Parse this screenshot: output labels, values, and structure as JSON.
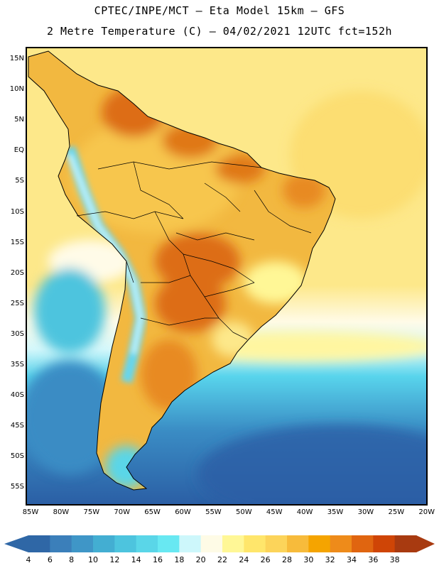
{
  "header": {
    "line1": "CPTEC/INPE/MCT –  Eta Model 15km – GFS",
    "line2": "2 Metre Temperature (C) – 04/02/2021 12UTC fct=152h"
  },
  "map": {
    "region": "South America",
    "lat_labels": [
      "15N",
      "10N",
      "5N",
      "EQ",
      "5S",
      "10S",
      "15S",
      "20S",
      "25S",
      "30S",
      "35S",
      "40S",
      "45S",
      "50S",
      "55S"
    ],
    "lon_labels": [
      "85W",
      "80W",
      "75W",
      "70W",
      "65W",
      "60W",
      "55W",
      "50W",
      "45W",
      "40W",
      "35W",
      "30W",
      "25W",
      "20W"
    ],
    "colors": {
      "ocean_cold": "#2b5fa5",
      "ocean_cool": "#3a8cc4",
      "ocean_mid": "#58d4ec",
      "ocean_warm": "#fde88a",
      "land_warm": "#f2b840",
      "land_hot": "#dd6d12",
      "andes": "#66d6ee"
    }
  },
  "colorbar": {
    "labels": [
      "4",
      "6",
      "8",
      "10",
      "12",
      "14",
      "16",
      "18",
      "20",
      "22",
      "24",
      "26",
      "28",
      "30",
      "32",
      "34",
      "36",
      "38"
    ],
    "colors": [
      "#2f67a6",
      "#3b7fba",
      "#3f96c7",
      "#43aed2",
      "#4dc4de",
      "#5ad6e8",
      "#68e8f2",
      "#cdf7fb",
      "#fefbe6",
      "#fff796",
      "#ffe66b",
      "#fcd45a",
      "#f7bb3b",
      "#f5a400",
      "#ee8b1a",
      "#e06510",
      "#cf4506",
      "#a83a10"
    ]
  }
}
